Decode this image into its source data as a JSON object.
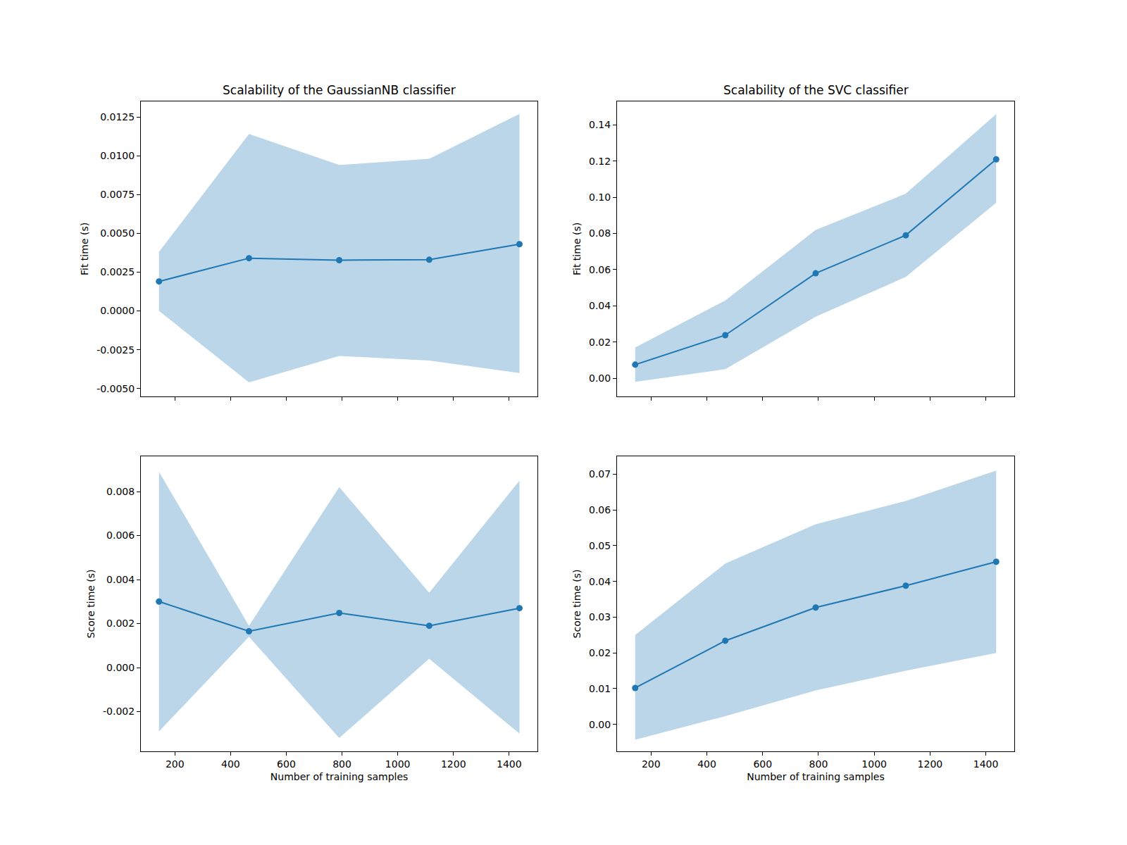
{
  "chart_data": [
    {
      "type": "line",
      "title": "Scalability of the GaussianNB classifier",
      "ylabel": "Fit time (s)",
      "x": [
        143,
        466,
        790,
        1113,
        1437
      ],
      "series": [
        {
          "color": "#1f77b4",
          "marker": "circle",
          "values": [
            0.0019,
            0.0034,
            0.00327,
            0.0033,
            0.0043
          ],
          "lower": [
            0.0,
            -0.0046,
            -0.0029,
            -0.0032,
            -0.004
          ],
          "upper": [
            0.0038,
            0.0114,
            0.0094,
            0.0098,
            0.0127
          ]
        }
      ],
      "xlim": [
        78,
        1502
      ],
      "xticks": [
        200,
        400,
        600,
        800,
        1000,
        1200,
        1400
      ],
      "ylim": [
        -0.0055,
        0.0135
      ],
      "yticks": [
        {
          "value": -0.005,
          "label": "-0.0050"
        },
        {
          "value": -0.0025,
          "label": "-0.0025"
        },
        {
          "value": 0,
          "label": "0.0000"
        },
        {
          "value": 0.0025,
          "label": "0.0025"
        },
        {
          "value": 0.005,
          "label": "0.0050"
        },
        {
          "value": 0.0075,
          "label": "0.0075"
        },
        {
          "value": 0.01,
          "label": "0.0100"
        },
        {
          "value": 0.0125,
          "label": "0.0125"
        }
      ],
      "tick_labels": "y",
      "grid": false
    },
    {
      "type": "line",
      "title": "Scalability of the SVC classifier",
      "ylabel": "Fit time (s)",
      "x": [
        143,
        466,
        790,
        1113,
        1437
      ],
      "series": [
        {
          "color": "#1f77b4",
          "marker": "circle",
          "values": [
            0.0075,
            0.0238,
            0.058,
            0.079,
            0.121
          ],
          "lower": [
            -0.002,
            0.005,
            0.034,
            0.056,
            0.097
          ],
          "upper": [
            0.017,
            0.043,
            0.082,
            0.102,
            0.146
          ]
        }
      ],
      "xlim": [
        78,
        1502
      ],
      "xticks": [
        200,
        400,
        600,
        800,
        1000,
        1200,
        1400
      ],
      "ylim": [
        -0.01,
        0.153
      ],
      "yticks": [
        {
          "value": 0,
          "label": "0.00"
        },
        {
          "value": 0.02,
          "label": "0.02"
        },
        {
          "value": 0.04,
          "label": "0.04"
        },
        {
          "value": 0.06,
          "label": "0.06"
        },
        {
          "value": 0.08,
          "label": "0.08"
        },
        {
          "value": 0.1,
          "label": "0.10"
        },
        {
          "value": 0.12,
          "label": "0.12"
        },
        {
          "value": 0.14,
          "label": "0.14"
        }
      ],
      "tick_labels": "y",
      "grid": false
    },
    {
      "type": "line",
      "xlabel": "Number of training samples",
      "ylabel": "Score time (s)",
      "x": [
        143,
        466,
        790,
        1113,
        1437
      ],
      "series": [
        {
          "color": "#1f77b4",
          "marker": "circle",
          "values": [
            0.003,
            0.00165,
            0.00248,
            0.0019,
            0.0027
          ],
          "lower": [
            -0.0029,
            0.0014,
            -0.0032,
            0.0004,
            -0.003
          ],
          "upper": [
            0.0089,
            0.0019,
            0.0082,
            0.0034,
            0.0085
          ]
        }
      ],
      "xlim": [
        78,
        1502
      ],
      "xticks": [
        200,
        400,
        600,
        800,
        1000,
        1200,
        1400
      ],
      "ylim": [
        -0.0038,
        0.0096
      ],
      "yticks": [
        {
          "value": -0.002,
          "label": "-0.002"
        },
        {
          "value": 0,
          "label": "0.000"
        },
        {
          "value": 0.002,
          "label": "0.002"
        },
        {
          "value": 0.004,
          "label": "0.004"
        },
        {
          "value": 0.006,
          "label": "0.006"
        },
        {
          "value": 0.008,
          "label": "0.008"
        }
      ],
      "grid": false
    },
    {
      "type": "line",
      "xlabel": "Number of training samples",
      "ylabel": "Score time (s)",
      "x": [
        143,
        466,
        790,
        1113,
        1437
      ],
      "series": [
        {
          "color": "#1f77b4",
          "marker": "circle",
          "values": [
            0.0102,
            0.0234,
            0.0327,
            0.0388,
            0.0455
          ],
          "lower": [
            -0.0043,
            0.0023,
            0.0095,
            0.015,
            0.02
          ],
          "upper": [
            0.025,
            0.045,
            0.056,
            0.0625,
            0.071
          ]
        }
      ],
      "xlim": [
        78,
        1502
      ],
      "xticks": [
        200,
        400,
        600,
        800,
        1000,
        1200,
        1400
      ],
      "ylim": [
        -0.0075,
        0.075
      ],
      "yticks": [
        {
          "value": 0,
          "label": "0.00"
        },
        {
          "value": 0.01,
          "label": "0.01"
        },
        {
          "value": 0.02,
          "label": "0.02"
        },
        {
          "value": 0.03,
          "label": "0.03"
        },
        {
          "value": 0.04,
          "label": "0.04"
        },
        {
          "value": 0.05,
          "label": "0.05"
        },
        {
          "value": 0.06,
          "label": "0.06"
        },
        {
          "value": 0.07,
          "label": "0.07"
        }
      ],
      "grid": false
    }
  ]
}
